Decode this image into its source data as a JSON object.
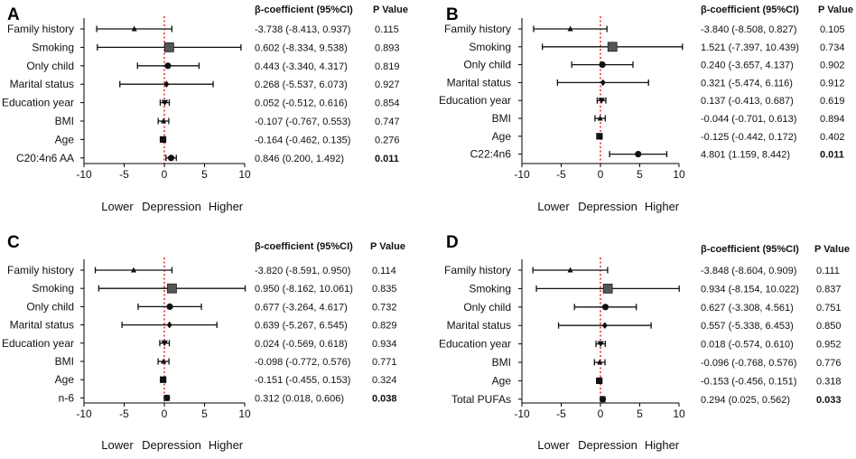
{
  "chart_data": [
    {
      "panel": "A",
      "type": "forest",
      "header_coef": "β-coefficient (95%CI)",
      "header_p": "P Value",
      "xlim": [
        -10,
        10
      ],
      "ticks": [
        "-10",
        "-5",
        "0",
        "5",
        "10"
      ],
      "xlabel": [
        "Lower",
        "Depression",
        "Higher"
      ],
      "rows": [
        {
          "label": "Family history",
          "est": -3.738,
          "lo": -8.413,
          "hi": 0.937,
          "ci_text": "-3.738 (-8.413, 0.937)",
          "p": "0.115",
          "sig": false,
          "marker": "triangle"
        },
        {
          "label": "Smoking",
          "est": 0.602,
          "lo": -8.334,
          "hi": 9.538,
          "ci_text": "0.602 (-8.334, 9.538)",
          "p": "0.893",
          "sig": false,
          "marker": "square-large"
        },
        {
          "label": "Only child",
          "est": 0.443,
          "lo": -3.34,
          "hi": 4.317,
          "ci_text": "0.443 (-3.340, 4.317)",
          "p": "0.819",
          "sig": false,
          "marker": "circle"
        },
        {
          "label": "Marital status",
          "est": 0.268,
          "lo": -5.537,
          "hi": 6.073,
          "ci_text": "0.268 (-5.537, 6.073)",
          "p": "0.927",
          "sig": false,
          "marker": "diamond"
        },
        {
          "label": "Education year",
          "est": 0.052,
          "lo": -0.512,
          "hi": 0.616,
          "ci_text": "0.052 (-0.512, 0.616)",
          "p": "0.854",
          "sig": false,
          "marker": "triangle-down"
        },
        {
          "label": "BMI",
          "est": -0.107,
          "lo": -0.767,
          "hi": 0.553,
          "ci_text": "-0.107 (-0.767, 0.553)",
          "p": "0.747",
          "sig": false,
          "marker": "triangle"
        },
        {
          "label": "Age",
          "est": -0.164,
          "lo": -0.462,
          "hi": 0.135,
          "ci_text": "-0.164 (-0.462, 0.135)",
          "p": "0.276",
          "sig": false,
          "marker": "square"
        },
        {
          "label": "C20:4n6 AA",
          "est": 0.846,
          "lo": 0.2,
          "hi": 1.492,
          "ci_text": "0.846 (0.200, 1.492)",
          "p": "0.011",
          "sig": true,
          "marker": "circle"
        }
      ]
    },
    {
      "panel": "B",
      "type": "forest",
      "header_coef": "β-coefficient (95%CI)",
      "header_p": "P Value",
      "xlim": [
        -10,
        10
      ],
      "ticks": [
        "-10",
        "-5",
        "0",
        "5",
        "10"
      ],
      "xlabel": [
        "Lower",
        "Depression",
        "Higher"
      ],
      "rows": [
        {
          "label": "Family history",
          "est": -3.84,
          "lo": -8.508,
          "hi": 0.827,
          "ci_text": "-3.840 (-8.508, 0.827)",
          "p": "0.105",
          "sig": false,
          "marker": "triangle"
        },
        {
          "label": "Smoking",
          "est": 1.521,
          "lo": -7.397,
          "hi": 10.439,
          "ci_text": "1.521 (-7.397, 10.439)",
          "p": "0.734",
          "sig": false,
          "marker": "square-large"
        },
        {
          "label": "Only child",
          "est": 0.24,
          "lo": -3.657,
          "hi": 4.137,
          "ci_text": "0.240 (-3.657, 4.137)",
          "p": "0.902",
          "sig": false,
          "marker": "circle"
        },
        {
          "label": "Marital status",
          "est": 0.321,
          "lo": -5.474,
          "hi": 6.116,
          "ci_text": "0.321 (-5.474, 6.116)",
          "p": "0.912",
          "sig": false,
          "marker": "diamond"
        },
        {
          "label": "Education year",
          "est": 0.137,
          "lo": -0.413,
          "hi": 0.687,
          "ci_text": "0.137 (-0.413, 0.687)",
          "p": "0.619",
          "sig": false,
          "marker": "triangle-down"
        },
        {
          "label": "BMI",
          "est": -0.044,
          "lo": -0.701,
          "hi": 0.613,
          "ci_text": "-0.044 (-0.701, 0.613)",
          "p": "0.894",
          "sig": false,
          "marker": "triangle"
        },
        {
          "label": "Age",
          "est": -0.125,
          "lo": -0.442,
          "hi": 0.172,
          "ci_text": "-0.125 (-0.442, 0.172)",
          "p": "0.402",
          "sig": false,
          "marker": "square"
        },
        {
          "label": "C22:4n6",
          "est": 4.801,
          "lo": 1.159,
          "hi": 8.442,
          "ci_text": "4.801 (1.159, 8.442)",
          "p": "0.011",
          "sig": true,
          "marker": "circle"
        }
      ]
    },
    {
      "panel": "C",
      "type": "forest",
      "header_coef": "β-coefficient (95%CI)",
      "header_p": "P Value",
      "xlim": [
        -10,
        10
      ],
      "ticks": [
        "-10",
        "-5",
        "0",
        "5",
        "10"
      ],
      "xlabel": [
        "Lower",
        "Depression",
        "Higher"
      ],
      "rows": [
        {
          "label": "Family history",
          "est": -3.82,
          "lo": -8.591,
          "hi": 0.95,
          "ci_text": "-3.820 (-8.591, 0.950)",
          "p": "0.114",
          "sig": false,
          "marker": "triangle"
        },
        {
          "label": "Smoking",
          "est": 0.95,
          "lo": -8.162,
          "hi": 10.061,
          "ci_text": "0.950 (-8.162, 10.061)",
          "p": "0.835",
          "sig": false,
          "marker": "square-large"
        },
        {
          "label": "Only child",
          "est": 0.677,
          "lo": -3.264,
          "hi": 4.617,
          "ci_text": "0.677 (-3.264, 4.617)",
          "p": "0.732",
          "sig": false,
          "marker": "circle"
        },
        {
          "label": "Marital status",
          "est": 0.639,
          "lo": -5.267,
          "hi": 6.545,
          "ci_text": "0.639 (-5.267, 6.545)",
          "p": "0.829",
          "sig": false,
          "marker": "diamond"
        },
        {
          "label": "Education year",
          "est": 0.024,
          "lo": -0.569,
          "hi": 0.618,
          "ci_text": "0.024 (-0.569, 0.618)",
          "p": "0.934",
          "sig": false,
          "marker": "triangle-down"
        },
        {
          "label": "BMI",
          "est": -0.098,
          "lo": -0.772,
          "hi": 0.576,
          "ci_text": "-0.098 (-0.772, 0.576)",
          "p": "0.771",
          "sig": false,
          "marker": "triangle"
        },
        {
          "label": "Age",
          "est": -0.151,
          "lo": -0.455,
          "hi": 0.153,
          "ci_text": "-0.151 (-0.455, 0.153)",
          "p": "0.324",
          "sig": false,
          "marker": "square"
        },
        {
          "label": "n-6",
          "est": 0.312,
          "lo": 0.018,
          "hi": 0.606,
          "ci_text": "0.312 (0.018, 0.606)",
          "p": "0.038",
          "sig": true,
          "marker": "circle"
        }
      ]
    },
    {
      "panel": "D",
      "type": "forest",
      "header_coef": "β-coefficient (95%CI)",
      "header_p": "P Value",
      "xlim": [
        -10,
        10
      ],
      "ticks": [
        "-10",
        "-5",
        "0",
        "5",
        "10"
      ],
      "xlabel": [
        "Lower",
        "Depression",
        "Higher"
      ],
      "rows": [
        {
          "label": "Family history",
          "est": -3.848,
          "lo": -8.604,
          "hi": 0.909,
          "ci_text": "-3.848 (-8.604, 0.909)",
          "p": "0.111",
          "sig": false,
          "marker": "triangle"
        },
        {
          "label": "Smoking",
          "est": 0.934,
          "lo": -8.154,
          "hi": 10.022,
          "ci_text": "0.934 (-8.154, 10.022)",
          "p": "0.837",
          "sig": false,
          "marker": "square-large"
        },
        {
          "label": "Only child",
          "est": 0.627,
          "lo": -3.308,
          "hi": 4.561,
          "ci_text": "0.627 (-3.308, 4.561)",
          "p": "0.751",
          "sig": false,
          "marker": "circle"
        },
        {
          "label": "Marital status",
          "est": 0.557,
          "lo": -5.338,
          "hi": 6.453,
          "ci_text": "0.557 (-5.338, 6.453)",
          "p": "0.850",
          "sig": false,
          "marker": "diamond"
        },
        {
          "label": "Education year",
          "est": 0.018,
          "lo": -0.574,
          "hi": 0.61,
          "ci_text": "0.018 (-0.574, 0.610)",
          "p": "0.952",
          "sig": false,
          "marker": "triangle-down"
        },
        {
          "label": "BMI",
          "est": -0.096,
          "lo": -0.768,
          "hi": 0.576,
          "ci_text": "-0.096 (-0.768, 0.576)",
          "p": "0.776",
          "sig": false,
          "marker": "triangle"
        },
        {
          "label": "Age",
          "est": -0.153,
          "lo": -0.456,
          "hi": 0.151,
          "ci_text": "-0.153 (-0.456, 0.151)",
          "p": "0.318",
          "sig": false,
          "marker": "square"
        },
        {
          "label": "Total PUFAs",
          "est": 0.294,
          "lo": 0.025,
          "hi": 0.562,
          "ci_text": "0.294 (0.025, 0.562)",
          "p": "0.033",
          "sig": true,
          "marker": "circle"
        }
      ]
    }
  ],
  "colors": {
    "reference_line": "#e01818",
    "marker": "#111111",
    "smoking_marker": "#555555"
  }
}
